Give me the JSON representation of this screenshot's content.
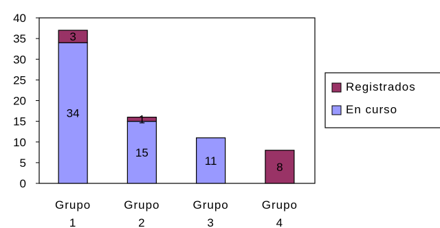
{
  "chart_data": {
    "type": "bar",
    "stacked": true,
    "categories": [
      [
        "Grupo",
        "1"
      ],
      [
        "Grupo",
        "2"
      ],
      [
        "Grupo",
        "3"
      ],
      [
        "Grupo",
        "4"
      ]
    ],
    "series": [
      {
        "name": "En curso",
        "color": "#9999ff",
        "values": [
          34,
          15,
          11,
          0
        ],
        "labels": [
          "34",
          "15",
          "11",
          ""
        ]
      },
      {
        "name": "Registrados",
        "color": "#993366",
        "values": [
          3,
          1,
          0,
          8
        ],
        "labels": [
          "3",
          "1",
          "",
          "8"
        ]
      }
    ],
    "ylim": [
      0,
      40
    ],
    "yticks": [
      0,
      5,
      10,
      15,
      20,
      25,
      30,
      35,
      40
    ],
    "legend": {
      "position": "right",
      "order": [
        "Registrados",
        "En curso"
      ]
    },
    "grid": false
  }
}
